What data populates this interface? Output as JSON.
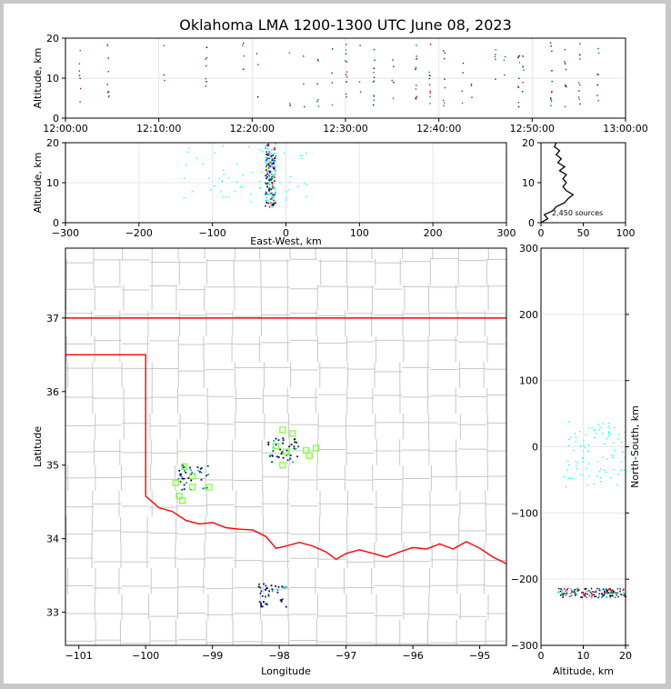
{
  "title": "Oklahoma LMA 1200-1300 UTC June 08, 2023",
  "colors": {
    "state_border": "#ff0000",
    "county_border": "#c8c8c8",
    "station": "#80ff40",
    "early_source": "#004020",
    "late_source": "#00ffff",
    "histogram": "#000000"
  },
  "chart_data": [
    {
      "id": "time-altitude",
      "type": "scatter",
      "xlabel": "",
      "ylabel": "Altitude, km",
      "xlim": [
        "12:00:00",
        "13:00:00"
      ],
      "ylim": [
        0,
        20
      ],
      "xticks": [
        "12:00:00",
        "12:10:00",
        "12:20:00",
        "12:30:00",
        "12:40:00",
        "12:50:00",
        "13:00:00"
      ],
      "yticks": [
        0,
        10,
        20
      ],
      "grid": true,
      "source_bands_minutes": [
        1.5,
        4.5,
        10.5,
        15,
        19,
        20.5,
        24,
        25.5,
        27,
        28.5,
        30,
        31.5,
        33,
        35,
        37.5,
        39,
        40.5,
        42.5,
        43.5,
        46,
        47,
        48.5,
        49,
        52,
        53.5,
        55,
        57
      ]
    },
    {
      "id": "east-west-altitude",
      "type": "scatter",
      "xlabel": "East-West, km",
      "ylabel": "Altitude, km",
      "xlim": [
        -300,
        300
      ],
      "ylim": [
        0,
        20
      ],
      "xticks": [
        -300,
        -200,
        -100,
        0,
        100,
        200,
        300
      ],
      "yticks": [
        0,
        10,
        20
      ],
      "grid": true
    },
    {
      "id": "altitude-histogram",
      "type": "line",
      "xlabel": "",
      "ylabel": "",
      "xlim": [
        0,
        100
      ],
      "ylim": [
        0,
        20
      ],
      "xticks": [
        0,
        50,
        100
      ],
      "yticks": [
        0,
        10,
        20
      ],
      "annotation": "2,450 sources",
      "profile": [
        [
          0,
          0
        ],
        [
          8,
          1
        ],
        [
          4,
          2
        ],
        [
          14,
          3
        ],
        [
          18,
          4
        ],
        [
          28,
          5
        ],
        [
          32,
          6
        ],
        [
          38,
          7
        ],
        [
          30,
          8
        ],
        [
          26,
          9
        ],
        [
          30,
          10
        ],
        [
          26,
          11
        ],
        [
          30,
          12
        ],
        [
          22,
          13
        ],
        [
          28,
          14
        ],
        [
          20,
          15
        ],
        [
          24,
          16
        ],
        [
          18,
          17
        ],
        [
          22,
          18
        ],
        [
          16,
          19
        ],
        [
          18,
          20
        ]
      ]
    },
    {
      "id": "plan-view-map",
      "type": "scatter",
      "xlabel": "Longitude",
      "ylabel": "Latitude",
      "xlim": [
        -101.2,
        -94.6
      ],
      "ylim": [
        32.55,
        37.95
      ],
      "xticks": [
        -101,
        -100,
        -99,
        -98,
        -97,
        -96,
        -95
      ],
      "yticks": [
        33,
        34,
        35,
        36,
        37
      ],
      "stations": [
        [
          -99.42,
          34.98
        ],
        [
          -99.3,
          34.85
        ],
        [
          -99.55,
          34.76
        ],
        [
          -99.3,
          34.7
        ],
        [
          -99.05,
          34.7
        ],
        [
          -99.5,
          34.58
        ],
        [
          -99.45,
          34.52
        ],
        [
          -97.95,
          35.48
        ],
        [
          -97.8,
          35.43
        ],
        [
          -98.05,
          35.26
        ],
        [
          -97.9,
          35.18
        ],
        [
          -97.6,
          35.2
        ],
        [
          -97.55,
          35.13
        ],
        [
          -97.45,
          35.23
        ],
        [
          -97.95,
          35.0
        ]
      ],
      "clusters": [
        [
          -99.3,
          34.85
        ],
        [
          -97.95,
          35.22
        ],
        [
          -98.1,
          33.25
        ]
      ]
    },
    {
      "id": "altitude-north-south",
      "type": "scatter",
      "xlabel": "Altitude, km",
      "ylabel": "North-South, km",
      "xlim": [
        0,
        20
      ],
      "ylim": [
        -300,
        300
      ],
      "xticks": [
        0,
        10,
        20
      ],
      "yticks": [
        -300,
        -200,
        -100,
        0,
        100,
        200,
        300
      ],
      "grid": true
    }
  ]
}
